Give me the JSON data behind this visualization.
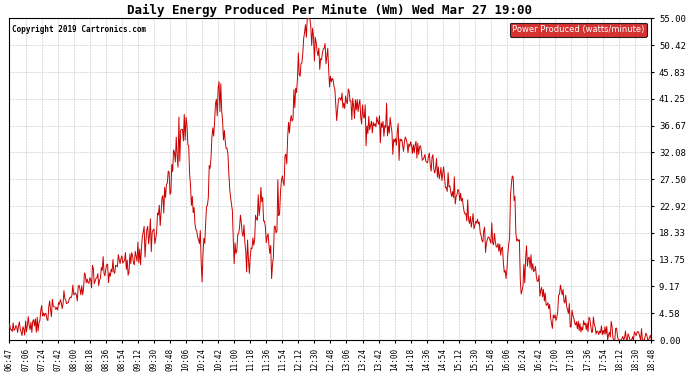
{
  "title": "Daily Energy Produced Per Minute (Wm) Wed Mar 27 19:00",
  "copyright": "Copyright 2019 Cartronics.com",
  "legend_label": "Power Produced (watts/minute)",
  "legend_bg": "#cc0000",
  "line_color": "#cc0000",
  "bg_color": "#ffffff",
  "grid_color": "#bbbbbb",
  "ylim": [
    0.0,
    55.0
  ],
  "yticks": [
    0.0,
    4.58,
    9.17,
    13.75,
    18.33,
    22.92,
    27.5,
    32.08,
    36.67,
    41.25,
    45.83,
    50.42,
    55.0
  ],
  "ytick_labels": [
    "0.00",
    "4.58",
    "9.17",
    "13.75",
    "18.33",
    "22.92",
    "27.50",
    "32.08",
    "36.67",
    "41.25",
    "45.83",
    "50.42",
    "55.00"
  ],
  "xtick_labels": [
    "06:47",
    "07:06",
    "07:24",
    "07:42",
    "08:00",
    "08:18",
    "08:36",
    "08:54",
    "09:12",
    "09:30",
    "09:48",
    "10:06",
    "10:24",
    "10:42",
    "11:00",
    "11:18",
    "11:36",
    "11:54",
    "12:12",
    "12:30",
    "12:48",
    "13:06",
    "13:24",
    "13:42",
    "14:00",
    "14:18",
    "14:36",
    "14:54",
    "15:12",
    "15:30",
    "15:48",
    "16:06",
    "16:24",
    "16:42",
    "17:00",
    "17:18",
    "17:36",
    "17:54",
    "18:12",
    "18:30",
    "18:48"
  ]
}
